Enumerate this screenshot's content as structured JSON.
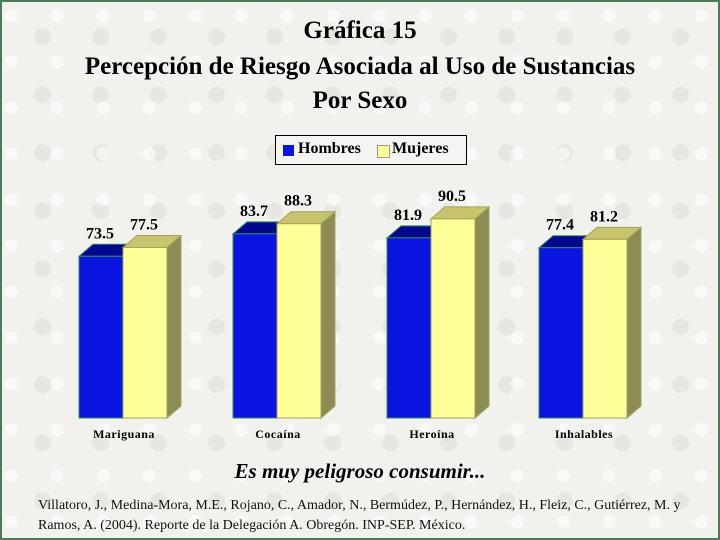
{
  "title": {
    "line1": "Gráfica 15",
    "line2": "Percepción de Riesgo Asociada al Uso de Sustancias",
    "line3": "Por Sexo"
  },
  "legend": {
    "hombres": "Hombres",
    "mujeres": "Mujeres"
  },
  "colors": {
    "hombres": "#0a14e0",
    "mujeres": "#ffff99",
    "frame": "#4d7a55"
  },
  "subtitle": "Es muy peligroso consumir...",
  "citation": "Villatoro, J., Medina-Mora, M.E., Rojano, C., Amador, N., Bermúdez, P., Hernández, H., Fleiz, C., Gutiérrez, M. y Ramos, A. (2004). Reporte de la Delegación A. Obregón. INP-SEP. México.",
  "chart_data": {
    "type": "bar",
    "categories": [
      "Mariguana",
      "Cocaína",
      "Heroína",
      "Inhalables"
    ],
    "series": [
      {
        "name": "Hombres",
        "values": [
          73.5,
          83.7,
          81.9,
          77.4
        ]
      },
      {
        "name": "Mujeres",
        "values": [
          77.5,
          88.3,
          90.5,
          81.2
        ]
      }
    ],
    "ylim": [
      0,
      100
    ],
    "grid": false,
    "legend_position": "top-center",
    "data_labels": true,
    "style": "3d"
  }
}
